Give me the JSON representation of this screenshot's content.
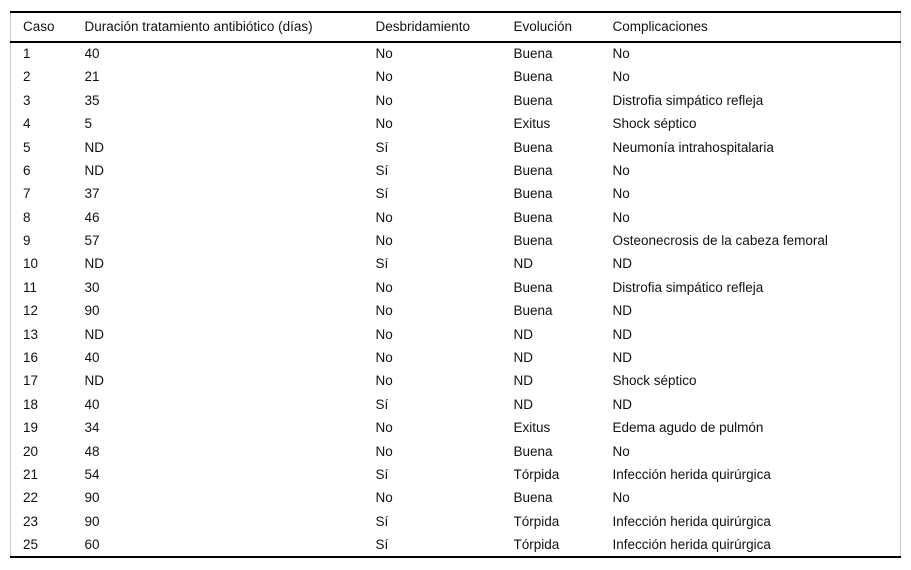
{
  "table": {
    "columns": [
      "Caso",
      "Duración tratamiento antibiótico (días)",
      "Desbridamiento",
      "Evolución",
      "Complicaciones"
    ],
    "rows": [
      [
        "1",
        "40",
        "No",
        "Buena",
        "No"
      ],
      [
        "2",
        "21",
        "No",
        "Buena",
        "No"
      ],
      [
        "3",
        "35",
        "No",
        "Buena",
        "Distrofia simpático refleja"
      ],
      [
        "4",
        "5",
        "No",
        "Exitus",
        "Shock séptico"
      ],
      [
        "5",
        "ND",
        "Sí",
        "Buena",
        "Neumonía intrahospitalaria"
      ],
      [
        "6",
        "ND",
        "Sí",
        "Buena",
        "No"
      ],
      [
        "7",
        "37",
        "Sí",
        "Buena",
        "No"
      ],
      [
        "8",
        "46",
        "No",
        "Buena",
        "No"
      ],
      [
        "9",
        "57",
        "No",
        "Buena",
        "Osteonecrosis de la cabeza femoral"
      ],
      [
        "10",
        "ND",
        "Sí",
        "ND",
        "ND"
      ],
      [
        "11",
        "30",
        "No",
        "Buena",
        "Distrofia simpático refleja"
      ],
      [
        "12",
        "90",
        "No",
        "Buena",
        "ND"
      ],
      [
        "13",
        "ND",
        "No",
        "ND",
        "ND"
      ],
      [
        "16",
        "40",
        "No",
        "ND",
        "ND"
      ],
      [
        "17",
        "ND",
        "No",
        "ND",
        "Shock séptico"
      ],
      [
        "18",
        "40",
        "Sí",
        "ND",
        "ND"
      ],
      [
        "19",
        "34",
        "No",
        "Exitus",
        "Edema agudo de pulmón"
      ],
      [
        "20",
        "48",
        "No",
        "Buena",
        "No"
      ],
      [
        "21",
        "54",
        "Sí",
        "Tórpida",
        "Infección herida quirúrgica"
      ],
      [
        "22",
        "90",
        "No",
        "Buena",
        "No"
      ],
      [
        "23",
        "90",
        "Sí",
        "Tórpida",
        "Infección herida quirúrgica"
      ],
      [
        "25",
        "60",
        "Sí",
        "Tórpida",
        "Infección herida quirúrgica"
      ]
    ],
    "column_keys": [
      "caso",
      "duracion",
      "desbridamiento",
      "evolucion",
      "complicaciones"
    ],
    "colors": {
      "text": "#111111",
      "border_heavy": "#000000",
      "border_light": "#c9c9c9",
      "background": "#ffffff"
    }
  }
}
